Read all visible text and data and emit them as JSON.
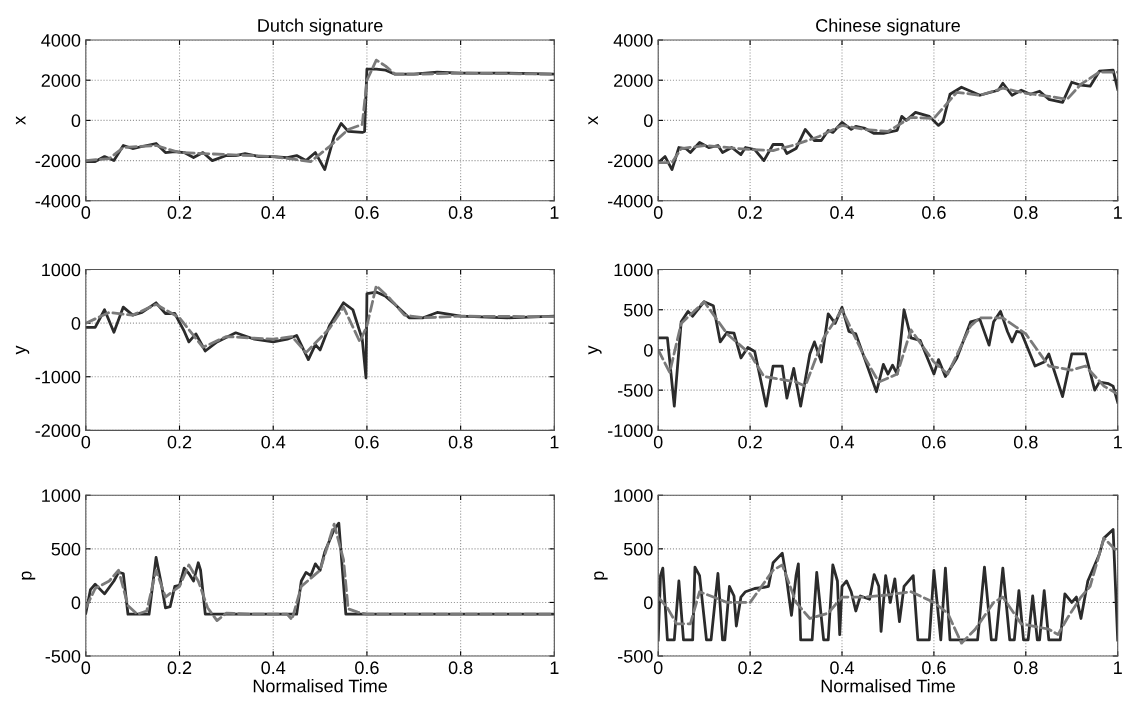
{
  "chart_data": [
    {
      "type": "line",
      "title": "Dutch signature",
      "ylabel": "x",
      "xlim": [
        0,
        1
      ],
      "xticks": [
        0,
        0.2,
        0.4,
        0.6,
        0.8,
        1
      ],
      "ylim": [
        -4000,
        4000
      ],
      "yticks": [
        -4000,
        -2000,
        0,
        2000,
        4000
      ],
      "grid": true,
      "series": [
        {
          "color": "#2b2b2b",
          "line_style": "solid",
          "x": [
            0,
            0.02,
            0.04,
            0.06,
            0.08,
            0.1,
            0.12,
            0.15,
            0.17,
            0.19,
            0.21,
            0.23,
            0.25,
            0.27,
            0.3,
            0.32,
            0.34,
            0.37,
            0.4,
            0.43,
            0.45,
            0.47,
            0.49,
            0.51,
            0.53,
            0.545,
            0.56,
            0.59,
            0.595,
            0.6,
            0.62,
            0.64,
            0.66,
            0.7,
            0.75,
            0.8,
            0.9,
            1
          ],
          "values": [
            -2050,
            -2050,
            -1800,
            -2000,
            -1250,
            -1400,
            -1300,
            -1150,
            -1600,
            -1550,
            -1600,
            -1850,
            -1600,
            -2000,
            -1750,
            -1750,
            -1650,
            -1800,
            -1800,
            -1850,
            -1750,
            -2000,
            -1600,
            -2450,
            -800,
            -150,
            -550,
            -600,
            -550,
            2550,
            2550,
            2500,
            2300,
            2300,
            2400,
            2350,
            2350,
            2300
          ]
        },
        {
          "color": "#7a7a7a",
          "line_style": "dashed",
          "x": [
            0,
            0.05,
            0.08,
            0.15,
            0.2,
            0.3,
            0.4,
            0.48,
            0.52,
            0.56,
            0.59,
            0.6,
            0.62,
            0.64,
            0.66,
            0.7,
            0.8,
            1
          ],
          "values": [
            -2000,
            -1900,
            -1350,
            -1250,
            -1600,
            -1700,
            -1800,
            -2050,
            -1300,
            -450,
            -200,
            2000,
            3000,
            2700,
            2300,
            2300,
            2350,
            2300
          ]
        }
      ]
    },
    {
      "type": "line",
      "title": "Chinese signature",
      "ylabel": "x",
      "xlim": [
        0,
        1
      ],
      "xticks": [
        0,
        0.2,
        0.4,
        0.6,
        0.8,
        1
      ],
      "ylim": [
        -4000,
        4000
      ],
      "yticks": [
        -4000,
        -2000,
        0,
        2000,
        4000
      ],
      "grid": true,
      "series": [
        {
          "color": "#2b2b2b",
          "line_style": "solid",
          "x": [
            0,
            0.015,
            0.03,
            0.045,
            0.06,
            0.07,
            0.09,
            0.11,
            0.13,
            0.14,
            0.16,
            0.18,
            0.19,
            0.21,
            0.23,
            0.25,
            0.27,
            0.28,
            0.3,
            0.32,
            0.34,
            0.355,
            0.37,
            0.38,
            0.4,
            0.42,
            0.43,
            0.45,
            0.47,
            0.49,
            0.52,
            0.53,
            0.54,
            0.56,
            0.59,
            0.61,
            0.62,
            0.635,
            0.66,
            0.7,
            0.74,
            0.75,
            0.77,
            0.79,
            0.81,
            0.83,
            0.85,
            0.88,
            0.9,
            0.92,
            0.94,
            0.96,
            0.99,
            1
          ],
          "values": [
            -2100,
            -1800,
            -2450,
            -1350,
            -1400,
            -1600,
            -1100,
            -1350,
            -1250,
            -1600,
            -1350,
            -1700,
            -1350,
            -1450,
            -2000,
            -1200,
            -1200,
            -1650,
            -1400,
            -450,
            -1000,
            -1000,
            -500,
            -600,
            -100,
            -450,
            -300,
            -400,
            -650,
            -650,
            -500,
            200,
            0,
            400,
            200,
            -250,
            -50,
            1300,
            1650,
            1250,
            1500,
            1850,
            1250,
            1500,
            1300,
            1450,
            1050,
            900,
            1900,
            1750,
            1700,
            2450,
            2500,
            1550
          ]
        },
        {
          "color": "#7a7a7a",
          "line_style": "dashed",
          "x": [
            0,
            0.03,
            0.05,
            0.1,
            0.2,
            0.25,
            0.3,
            0.35,
            0.4,
            0.45,
            0.5,
            0.55,
            0.6,
            0.65,
            0.7,
            0.75,
            0.8,
            0.85,
            0.89,
            0.92,
            0.96,
            1
          ],
          "values": [
            -2100,
            -2100,
            -1400,
            -1250,
            -1450,
            -1500,
            -1200,
            -800,
            -250,
            -450,
            -550,
            150,
            100,
            1400,
            1250,
            1600,
            1350,
            1200,
            1050,
            1800,
            2400,
            2400
          ]
        }
      ]
    },
    {
      "type": "line",
      "ylabel": "y",
      "xlim": [
        0,
        1
      ],
      "xticks": [
        0,
        0.2,
        0.4,
        0.6,
        0.8,
        1
      ],
      "ylim": [
        -2000,
        1000
      ],
      "yticks": [
        -2000,
        -1000,
        0,
        1000
      ],
      "grid": true,
      "series": [
        {
          "color": "#2b2b2b",
          "line_style": "solid",
          "x": [
            0,
            0.02,
            0.04,
            0.06,
            0.08,
            0.1,
            0.12,
            0.15,
            0.17,
            0.19,
            0.21,
            0.22,
            0.235,
            0.255,
            0.28,
            0.32,
            0.36,
            0.4,
            0.43,
            0.45,
            0.475,
            0.49,
            0.5,
            0.52,
            0.55,
            0.57,
            0.59,
            0.598,
            0.6,
            0.62,
            0.64,
            0.66,
            0.69,
            0.72,
            0.75,
            0.8,
            0.9,
            1
          ],
          "values": [
            -80,
            -80,
            250,
            -170,
            300,
            150,
            200,
            380,
            180,
            180,
            -150,
            -350,
            -200,
            -520,
            -350,
            -180,
            -300,
            -350,
            -300,
            -230,
            -680,
            -400,
            -500,
            -50,
            380,
            250,
            -300,
            -1020,
            550,
            580,
            500,
            350,
            100,
            100,
            200,
            130,
            100,
            130
          ]
        },
        {
          "color": "#7a7a7a",
          "line_style": "dashed",
          "x": [
            0,
            0.05,
            0.1,
            0.15,
            0.2,
            0.25,
            0.3,
            0.4,
            0.44,
            0.47,
            0.52,
            0.55,
            0.585,
            0.6,
            0.62,
            0.65,
            0.68,
            0.72,
            0.8,
            1
          ],
          "values": [
            0,
            200,
            150,
            350,
            100,
            -450,
            -250,
            -300,
            -250,
            -550,
            -100,
            300,
            -350,
            -50,
            700,
            450,
            150,
            100,
            130,
            120
          ]
        }
      ]
    },
    {
      "type": "line",
      "ylabel": "y",
      "xlim": [
        0,
        1
      ],
      "xticks": [
        0,
        0.2,
        0.4,
        0.6,
        0.8,
        1
      ],
      "ylim": [
        -1000,
        1000
      ],
      "yticks": [
        -1000,
        -500,
        0,
        500,
        1000
      ],
      "grid": true,
      "series": [
        {
          "color": "#2b2b2b",
          "line_style": "solid",
          "x": [
            0,
            0.02,
            0.035,
            0.05,
            0.065,
            0.075,
            0.1,
            0.12,
            0.135,
            0.15,
            0.165,
            0.18,
            0.195,
            0.21,
            0.235,
            0.25,
            0.27,
            0.28,
            0.295,
            0.31,
            0.33,
            0.34,
            0.355,
            0.37,
            0.385,
            0.4,
            0.415,
            0.43,
            0.475,
            0.49,
            0.5,
            0.51,
            0.52,
            0.535,
            0.55,
            0.57,
            0.6,
            0.61,
            0.625,
            0.65,
            0.68,
            0.7,
            0.72,
            0.73,
            0.745,
            0.76,
            0.77,
            0.78,
            0.79,
            0.82,
            0.84,
            0.85,
            0.88,
            0.9,
            0.93,
            0.95,
            0.96,
            0.98,
            0.99,
            1
          ],
          "values": [
            150,
            150,
            -700,
            350,
            480,
            420,
            600,
            550,
            100,
            220,
            210,
            -100,
            30,
            -20,
            -700,
            -200,
            -200,
            -600,
            -230,
            -700,
            -50,
            100,
            -150,
            450,
            330,
            530,
            230,
            200,
            -520,
            -180,
            -300,
            -190,
            -300,
            500,
            150,
            120,
            -300,
            -120,
            -330,
            -100,
            350,
            380,
            60,
            350,
            480,
            230,
            100,
            230,
            220,
            -200,
            -150,
            -50,
            -580,
            -50,
            -50,
            -500,
            -400,
            -420,
            -450,
            -650
          ]
        },
        {
          "color": "#7a7a7a",
          "line_style": "dashed",
          "x": [
            0,
            0.025,
            0.05,
            0.1,
            0.15,
            0.2,
            0.23,
            0.3,
            0.32,
            0.36,
            0.4,
            0.45,
            0.48,
            0.52,
            0.55,
            0.6,
            0.63,
            0.68,
            0.7,
            0.75,
            0.8,
            0.85,
            0.9,
            0.93,
            0.97,
            1
          ],
          "values": [
            0,
            -280,
            330,
            600,
            200,
            -50,
            -330,
            -400,
            -450,
            150,
            500,
            -100,
            -400,
            -300,
            250,
            -150,
            -300,
            300,
            400,
            400,
            200,
            -200,
            -250,
            -200,
            -450,
            -550
          ]
        }
      ]
    },
    {
      "type": "line",
      "xlabel": "Normalised Time",
      "ylabel": "p",
      "xlim": [
        0,
        1
      ],
      "xticks": [
        0,
        0.2,
        0.4,
        0.6,
        0.8,
        1
      ],
      "ylim": [
        -500,
        1000
      ],
      "yticks": [
        -500,
        0,
        500,
        1000
      ],
      "grid": true,
      "series": [
        {
          "color": "#2b2b2b",
          "line_style": "solid",
          "x": [
            0,
            0.01,
            0.02,
            0.04,
            0.06,
            0.07,
            0.08,
            0.09,
            0.135,
            0.15,
            0.16,
            0.17,
            0.18,
            0.19,
            0.2,
            0.21,
            0.22,
            0.23,
            0.24,
            0.245,
            0.255,
            0.45,
            0.46,
            0.47,
            0.48,
            0.49,
            0.5,
            0.51,
            0.53,
            0.54,
            0.555,
            1
          ],
          "values": [
            -100,
            120,
            170,
            80,
            200,
            280,
            270,
            -110,
            -110,
            420,
            200,
            -50,
            -40,
            150,
            160,
            320,
            270,
            200,
            370,
            300,
            -110,
            -110,
            200,
            280,
            250,
            360,
            300,
            470,
            680,
            740,
            -110,
            -110
          ]
        },
        {
          "color": "#7a7a7a",
          "line_style": "dashed",
          "x": [
            0,
            0.02,
            0.05,
            0.07,
            0.09,
            0.11,
            0.13,
            0.15,
            0.17,
            0.2,
            0.22,
            0.24,
            0.26,
            0.28,
            0.3,
            0.35,
            0.43,
            0.44,
            0.46,
            0.5,
            0.53,
            0.55,
            0.56,
            0.58,
            0.6,
            1
          ],
          "values": [
            -50,
            130,
            200,
            300,
            -30,
            -110,
            -80,
            300,
            50,
            150,
            350,
            200,
            -50,
            -170,
            -100,
            -110,
            -110,
            -160,
            150,
            300,
            730,
            400,
            -60,
            -90,
            -110,
            -110
          ]
        }
      ]
    },
    {
      "type": "line",
      "xlabel": "Normalised Time",
      "ylabel": "p",
      "xlim": [
        0,
        1
      ],
      "xticks": [
        0,
        0.2,
        0.4,
        0.6,
        0.8,
        1
      ],
      "ylim": [
        -500,
        1000
      ],
      "yticks": [
        -500,
        0,
        500,
        1000
      ],
      "grid": true,
      "series": [
        {
          "color": "#2b2b2b",
          "line_style": "solid",
          "x": [
            0,
            0.005,
            0.01,
            0.02,
            0.035,
            0.045,
            0.055,
            0.075,
            0.08,
            0.09,
            0.105,
            0.115,
            0.13,
            0.14,
            0.145,
            0.155,
            0.165,
            0.17,
            0.18,
            0.19,
            0.21,
            0.23,
            0.24,
            0.25,
            0.27,
            0.28,
            0.29,
            0.3,
            0.305,
            0.31,
            0.335,
            0.345,
            0.36,
            0.37,
            0.38,
            0.39,
            0.395,
            0.4,
            0.41,
            0.42,
            0.43,
            0.44,
            0.46,
            0.47,
            0.48,
            0.485,
            0.495,
            0.505,
            0.515,
            0.525,
            0.535,
            0.555,
            0.565,
            0.59,
            0.6,
            0.615,
            0.625,
            0.635,
            0.695,
            0.71,
            0.725,
            0.735,
            0.75,
            0.765,
            0.775,
            0.785,
            0.795,
            0.805,
            0.815,
            0.825,
            0.83,
            0.84,
            0.85,
            0.875,
            0.885,
            0.9,
            0.91,
            0.92,
            0.935,
            0.95,
            0.96,
            0.97,
            0.99,
            1
          ],
          "values": [
            -350,
            250,
            320,
            -350,
            -350,
            200,
            -350,
            -350,
            330,
            250,
            -350,
            -350,
            270,
            -350,
            -350,
            150,
            60,
            -220,
            50,
            100,
            130,
            140,
            150,
            370,
            460,
            200,
            -120,
            250,
            360,
            -350,
            -350,
            280,
            -350,
            -350,
            350,
            200,
            -300,
            150,
            200,
            100,
            -80,
            60,
            30,
            260,
            150,
            -270,
            250,
            0,
            220,
            -180,
            150,
            250,
            -350,
            -350,
            300,
            -350,
            320,
            -350,
            -350,
            330,
            -350,
            -350,
            320,
            -350,
            -350,
            110,
            -350,
            -350,
            60,
            -350,
            -350,
            110,
            -350,
            -350,
            80,
            0,
            50,
            -150,
            200,
            350,
            450,
            600,
            680,
            -350
          ]
        },
        {
          "color": "#7a7a7a",
          "line_style": "dashed",
          "x": [
            0,
            0.02,
            0.04,
            0.07,
            0.09,
            0.12,
            0.15,
            0.2,
            0.25,
            0.27,
            0.3,
            0.33,
            0.37,
            0.4,
            0.45,
            0.5,
            0.55,
            0.6,
            0.63,
            0.66,
            0.69,
            0.73,
            0.75,
            0.79,
            0.85,
            0.87,
            0.89,
            0.92,
            0.94,
            0.97,
            1
          ],
          "values": [
            50,
            -50,
            -200,
            -200,
            100,
            50,
            0,
            0,
            300,
            350,
            0,
            -150,
            -100,
            50,
            50,
            70,
            100,
            0,
            -100,
            -380,
            -250,
            0,
            50,
            -200,
            -250,
            -300,
            -150,
            50,
            150,
            600,
            470
          ]
        }
      ]
    }
  ]
}
